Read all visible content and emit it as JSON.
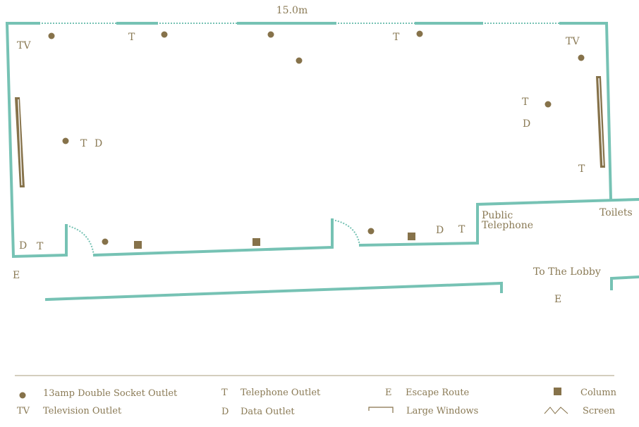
{
  "dimension_label": "15.0m",
  "rooms": {
    "public_telephone": [
      "Public",
      "Telephone"
    ],
    "toilets": "Toilets",
    "lobby": "To The Lobby"
  },
  "plan_markers": {
    "tv": "TV",
    "telephone": "T",
    "data": "D",
    "escape": "E"
  },
  "legend": {
    "socket": "13amp Double Socket Outlet",
    "tv_symbol": "TV",
    "tv": "Television Outlet",
    "telephone_symbol": "T",
    "telephone": "Telephone Outlet",
    "data_symbol": "D",
    "data": "Data Outlet",
    "escape_symbol": "E",
    "escape": "Escape Route",
    "windows": "Large Windows",
    "column": "Column",
    "screen": "Screen"
  },
  "colors": {
    "wall": "#76c2b4",
    "marker": "#86724a",
    "text": "#8a7a55"
  }
}
